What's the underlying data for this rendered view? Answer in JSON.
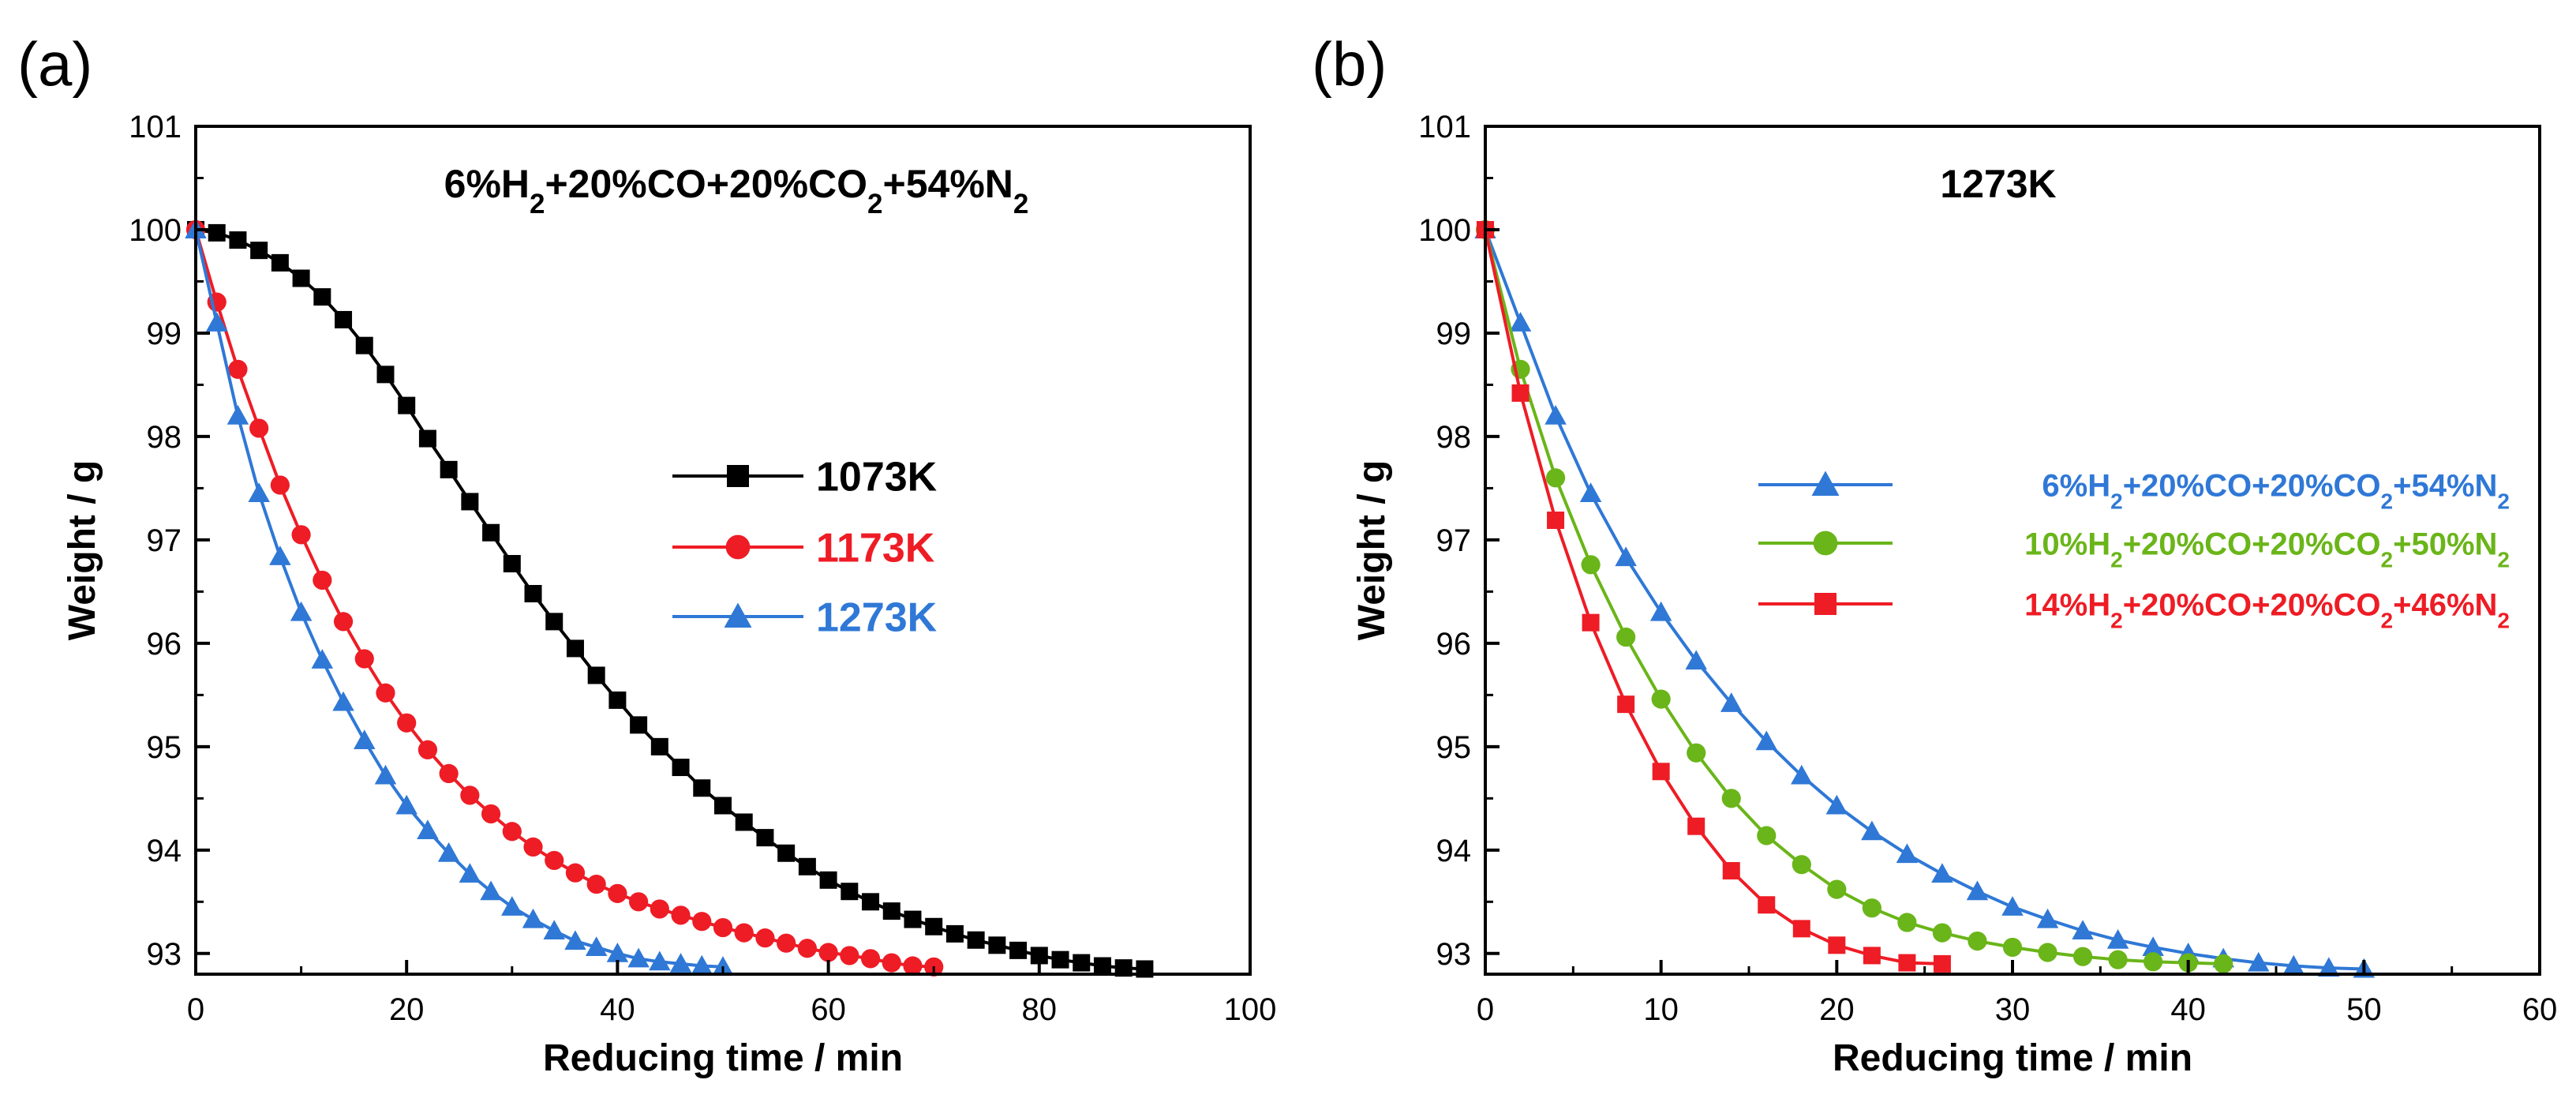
{
  "colors": {
    "black": "#000000",
    "red": "#ee1c25",
    "blue": "#2f78d6",
    "green": "#6ab519"
  },
  "chart_data": [
    {
      "panel_label": "(a)",
      "type": "line",
      "annotation_html": "6%H<tspan baseline-shift='sub' font-size='70%'>2</tspan>+20%CO+20%CO<tspan baseline-shift='sub' font-size='70%'>2</tspan>+54%N<tspan baseline-shift='sub' font-size='70%'>2</tspan>",
      "annotation": "6%H2+20%CO+20%CO2+54%N2",
      "xlabel": "Reducing time / min",
      "ylabel": "Weight / g",
      "xlim": [
        0,
        100
      ],
      "ylim": [
        92.8,
        101
      ],
      "xticks": [
        0,
        20,
        40,
        60,
        80,
        100
      ],
      "yticks": [
        93,
        94,
        95,
        96,
        97,
        98,
        99,
        100,
        101
      ],
      "grid": false,
      "legend_position": "center-right",
      "series": [
        {
          "name": "1073K",
          "color": "#000000",
          "marker": "square",
          "x": [
            0,
            2,
            4,
            6,
            8,
            10,
            12,
            14,
            16,
            18,
            20,
            22,
            24,
            26,
            28,
            30,
            32,
            34,
            36,
            38,
            40,
            42,
            44,
            46,
            48,
            50,
            52,
            54,
            56,
            58,
            60,
            62,
            64,
            66,
            68,
            70,
            72,
            74,
            76,
            78,
            80,
            82,
            84,
            86,
            88,
            90
          ],
          "y": [
            100.0,
            99.97,
            99.9,
            99.8,
            99.68,
            99.53,
            99.35,
            99.13,
            98.88,
            98.6,
            98.3,
            97.98,
            97.68,
            97.37,
            97.07,
            96.77,
            96.48,
            96.21,
            95.95,
            95.69,
            95.45,
            95.21,
            95.0,
            94.8,
            94.6,
            94.43,
            94.27,
            94.12,
            93.97,
            93.84,
            93.71,
            93.6,
            93.5,
            93.41,
            93.33,
            93.26,
            93.19,
            93.13,
            93.08,
            93.03,
            92.98,
            92.94,
            92.91,
            92.88,
            92.86,
            92.85
          ]
        },
        {
          "name": "1173K",
          "color": "#ee1c25",
          "marker": "circle",
          "x": [
            0,
            2,
            4,
            6,
            8,
            10,
            12,
            14,
            16,
            18,
            20,
            22,
            24,
            26,
            28,
            30,
            32,
            34,
            36,
            38,
            40,
            42,
            44,
            46,
            48,
            50,
            52,
            54,
            56,
            58,
            60,
            62,
            64,
            66,
            68,
            70
          ],
          "y": [
            100.0,
            99.3,
            98.65,
            98.08,
            97.53,
            97.05,
            96.61,
            96.21,
            95.85,
            95.52,
            95.23,
            94.97,
            94.74,
            94.53,
            94.35,
            94.18,
            94.03,
            93.9,
            93.78,
            93.67,
            93.58,
            93.5,
            93.43,
            93.37,
            93.31,
            93.25,
            93.2,
            93.15,
            93.1,
            93.05,
            93.01,
            92.98,
            92.95,
            92.91,
            92.88,
            92.87
          ]
        },
        {
          "name": "1273K",
          "color": "#2f78d6",
          "marker": "triangle",
          "x": [
            0,
            2,
            4,
            6,
            8,
            10,
            12,
            14,
            16,
            18,
            20,
            22,
            24,
            26,
            28,
            30,
            32,
            34,
            36,
            38,
            40,
            42,
            44,
            46,
            48,
            50
          ],
          "y": [
            100.0,
            99.1,
            98.2,
            97.45,
            96.84,
            96.3,
            95.84,
            95.43,
            95.06,
            94.72,
            94.43,
            94.19,
            93.97,
            93.77,
            93.6,
            93.45,
            93.33,
            93.22,
            93.12,
            93.06,
            93.0,
            92.95,
            92.92,
            92.9,
            92.88,
            92.87
          ]
        }
      ]
    },
    {
      "panel_label": "(b)",
      "type": "line",
      "annotation_html": "1273K",
      "annotation": "1273K",
      "xlabel": "Reducing time / min",
      "ylabel": "Weight / g",
      "xlim": [
        0,
        60
      ],
      "ylim": [
        92.8,
        101
      ],
      "xticks": [
        0,
        10,
        20,
        30,
        40,
        50,
        60
      ],
      "yticks": [
        93,
        94,
        95,
        96,
        97,
        98,
        99,
        100,
        101
      ],
      "grid": false,
      "legend_position": "center-right",
      "series": [
        {
          "name": "6%H2+20%CO+20%CO2+54%N2",
          "name_html": "6%H<tspan baseline-shift='sub' font-size='70%'>2</tspan>+20%CO+20%CO<tspan baseline-shift='sub' font-size='70%'>2</tspan>+54%N<tspan baseline-shift='sub' font-size='70%'>2</tspan>",
          "color": "#2f78d6",
          "marker": "triangle",
          "x": [
            0,
            2,
            4,
            6,
            8,
            10,
            12,
            14,
            16,
            18,
            20,
            22,
            24,
            26,
            28,
            30,
            32,
            34,
            36,
            38,
            40,
            42,
            44,
            46,
            48,
            50
          ],
          "y": [
            100.0,
            99.1,
            98.2,
            97.45,
            96.83,
            96.3,
            95.83,
            95.42,
            95.05,
            94.72,
            94.43,
            94.18,
            93.96,
            93.77,
            93.6,
            93.45,
            93.33,
            93.22,
            93.13,
            93.06,
            93.0,
            92.95,
            92.91,
            92.88,
            92.86,
            92.85
          ]
        },
        {
          "name": "10%H2+20%CO+20%CO2+50%N2",
          "name_html": "10%H<tspan baseline-shift='sub' font-size='70%'>2</tspan>+20%CO+20%CO<tspan baseline-shift='sub' font-size='70%'>2</tspan>+50%N<tspan baseline-shift='sub' font-size='70%'>2</tspan>",
          "color": "#6ab519",
          "marker": "circle",
          "x": [
            0,
            2,
            4,
            6,
            8,
            10,
            12,
            14,
            16,
            18,
            20,
            22,
            24,
            26,
            28,
            30,
            32,
            34,
            36,
            38,
            40,
            42
          ],
          "y": [
            100.0,
            98.65,
            97.6,
            96.76,
            96.06,
            95.46,
            94.94,
            94.5,
            94.14,
            93.86,
            93.62,
            93.44,
            93.3,
            93.2,
            93.12,
            93.06,
            93.01,
            92.97,
            92.94,
            92.92,
            92.91,
            92.9
          ]
        },
        {
          "name": "14%H2+20%CO+20%CO2+46%N2",
          "name_html": "14%H<tspan baseline-shift='sub' font-size='70%'>2</tspan>+20%CO+20%CO<tspan baseline-shift='sub' font-size='70%'>2</tspan>+46%N<tspan baseline-shift='sub' font-size='70%'>2</tspan>",
          "color": "#ee1c25",
          "marker": "square",
          "x": [
            0,
            2,
            4,
            6,
            8,
            10,
            12,
            14,
            16,
            18,
            20,
            22,
            24,
            26
          ],
          "y": [
            100.0,
            98.42,
            97.19,
            96.2,
            95.41,
            94.76,
            94.23,
            93.8,
            93.47,
            93.24,
            93.08,
            92.98,
            92.91,
            92.9
          ]
        }
      ]
    }
  ]
}
